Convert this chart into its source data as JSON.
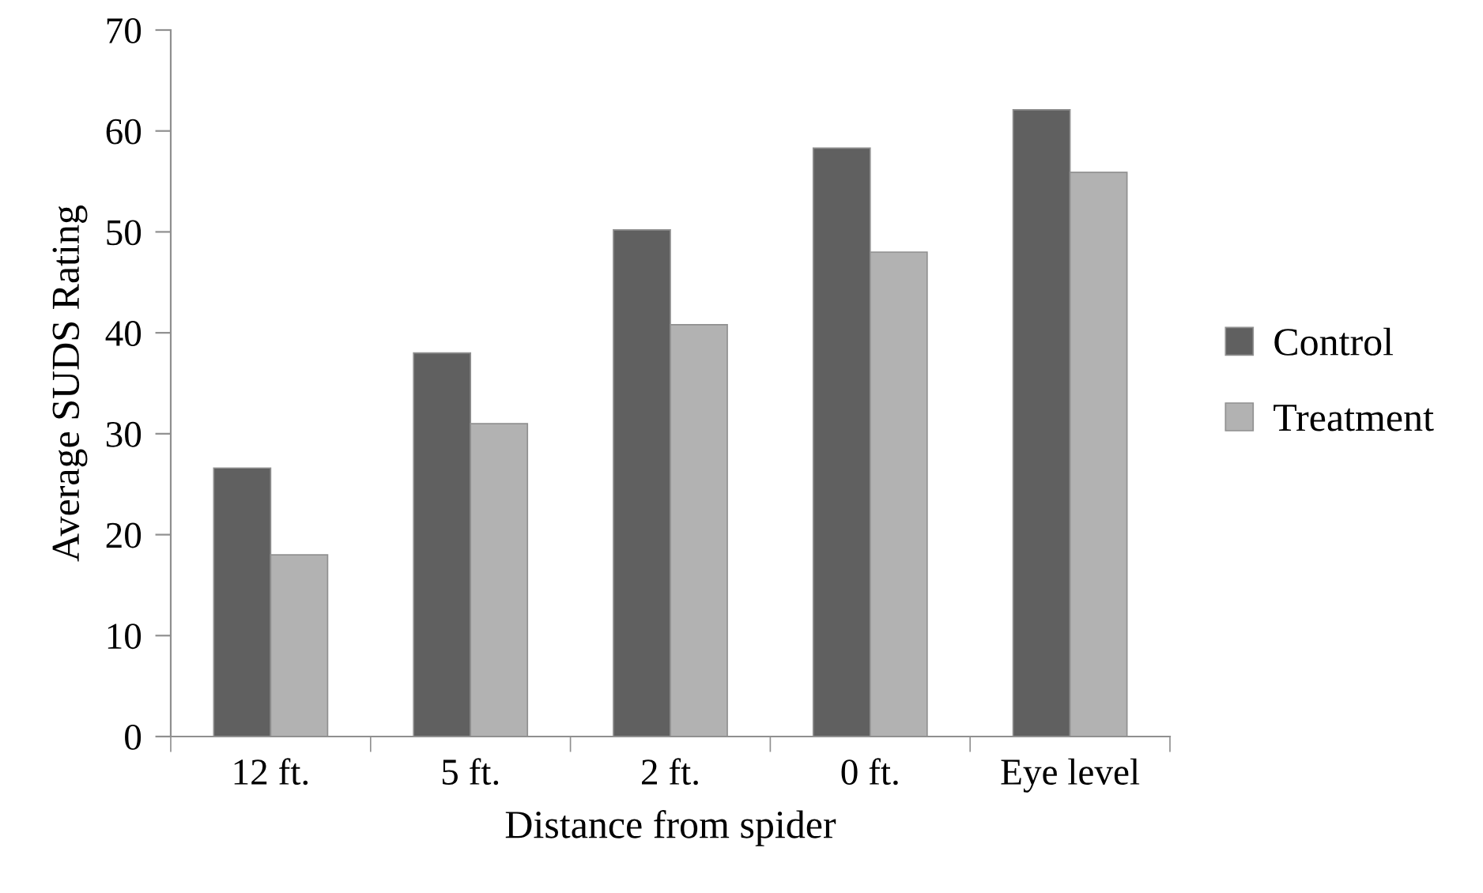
{
  "chart_data": {
    "type": "bar",
    "xlabel": "Distance from spider",
    "ylabel": "Average SUDS Rating",
    "categories": [
      "12 ft.",
      "5 ft.",
      "2 ft.",
      "0 ft.",
      "Eye level"
    ],
    "series": [
      {
        "name": "Control",
        "color": "#606060",
        "values": [
          26.6,
          38.0,
          50.2,
          58.3,
          62.1
        ]
      },
      {
        "name": "Treatment",
        "color": "#b2b2b2",
        "values": [
          18.0,
          31.0,
          40.8,
          48.0,
          55.9
        ]
      }
    ],
    "ylim": [
      0,
      70
    ],
    "yticks": [
      0,
      10,
      20,
      30,
      40,
      50,
      60,
      70
    ],
    "grid": false,
    "legend": "right"
  }
}
